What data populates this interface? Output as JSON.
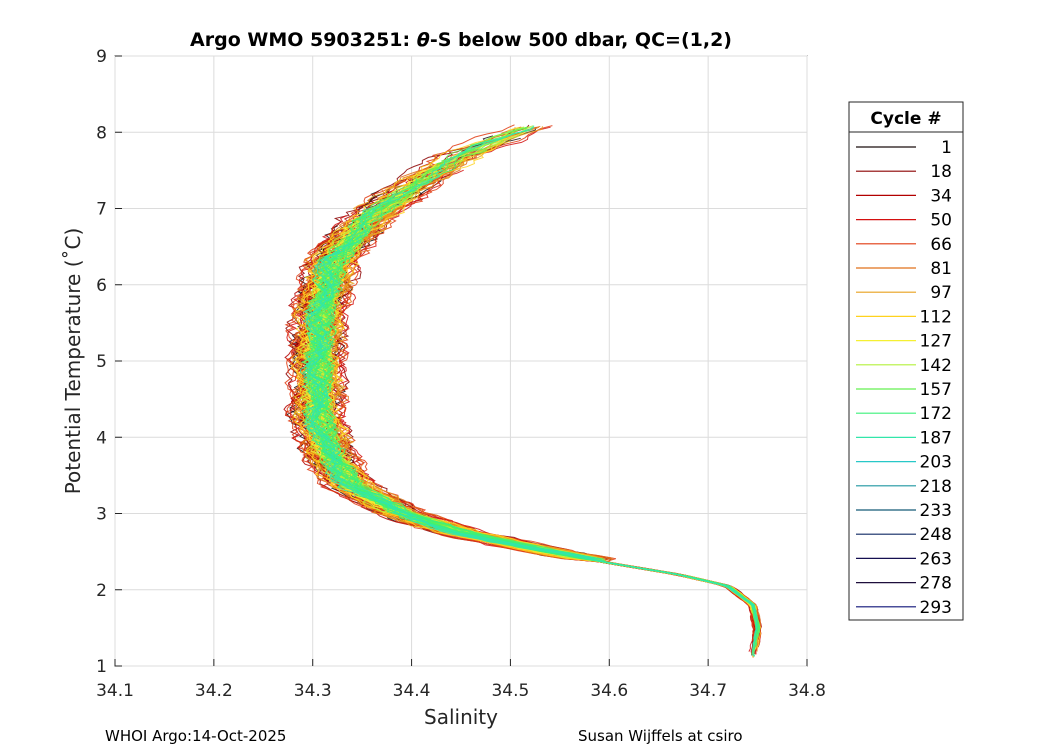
{
  "chart_data": {
    "type": "line",
    "title_prefix": "Argo WMO 5903251: ",
    "title_theta": "θ",
    "title_suffix": "-S below 500 dbar,  QC=(1,2)",
    "xlabel": "Salinity",
    "ylabel": "Potential Temperature (˚C)",
    "xlim": [
      34.1,
      34.8
    ],
    "ylim": [
      1,
      9
    ],
    "xticks": [
      "34.1",
      "34.2",
      "34.3",
      "34.4",
      "34.5",
      "34.6",
      "34.7",
      "34.8"
    ],
    "yticks": [
      "1",
      "2",
      "3",
      "4",
      "5",
      "6",
      "7",
      "8",
      "9"
    ],
    "grid": true,
    "legend": {
      "title": "Cycle #",
      "placement": "outside-right",
      "entries": [
        "1",
        "18",
        "34",
        "50",
        "66",
        "81",
        "97",
        "112",
        "127",
        "142",
        "157",
        "172",
        "187",
        "203",
        "218",
        "233",
        "248",
        "263",
        "278",
        "293"
      ],
      "colors": [
        "#1a0d0d",
        "#8b0000",
        "#b20000",
        "#d41010",
        "#e03a10",
        "#e0701a",
        "#e8a01e",
        "#ffd21e",
        "#f5f032",
        "#b4f03c",
        "#64f050",
        "#3cf07a",
        "#32e6aa",
        "#28c8c8",
        "#1e96a0",
        "#145a78",
        "#0f2864",
        "#140f50",
        "#1e0f3c",
        "#0f1478"
      ]
    },
    "series_envelope": {
      "description_values_only": true,
      "mean_curve": [
        [
          34.745,
          1.1
        ],
        [
          34.75,
          1.5
        ],
        [
          34.745,
          1.8
        ],
        [
          34.72,
          2.05
        ],
        [
          34.67,
          2.2
        ],
        [
          34.6,
          2.35
        ],
        [
          34.52,
          2.55
        ],
        [
          34.45,
          2.75
        ],
        [
          34.39,
          3.0
        ],
        [
          34.34,
          3.35
        ],
        [
          34.315,
          3.8
        ],
        [
          34.305,
          4.3
        ],
        [
          34.305,
          4.8
        ],
        [
          34.305,
          5.3
        ],
        [
          34.31,
          5.8
        ],
        [
          34.32,
          6.3
        ],
        [
          34.35,
          6.8
        ],
        [
          34.4,
          7.3
        ],
        [
          34.45,
          7.7
        ],
        [
          34.52,
          8.1
        ]
      ]
    },
    "footer_left": "WHOI Argo:14-Oct-2025",
    "footer_right": "Susan Wijffels at csiro"
  }
}
